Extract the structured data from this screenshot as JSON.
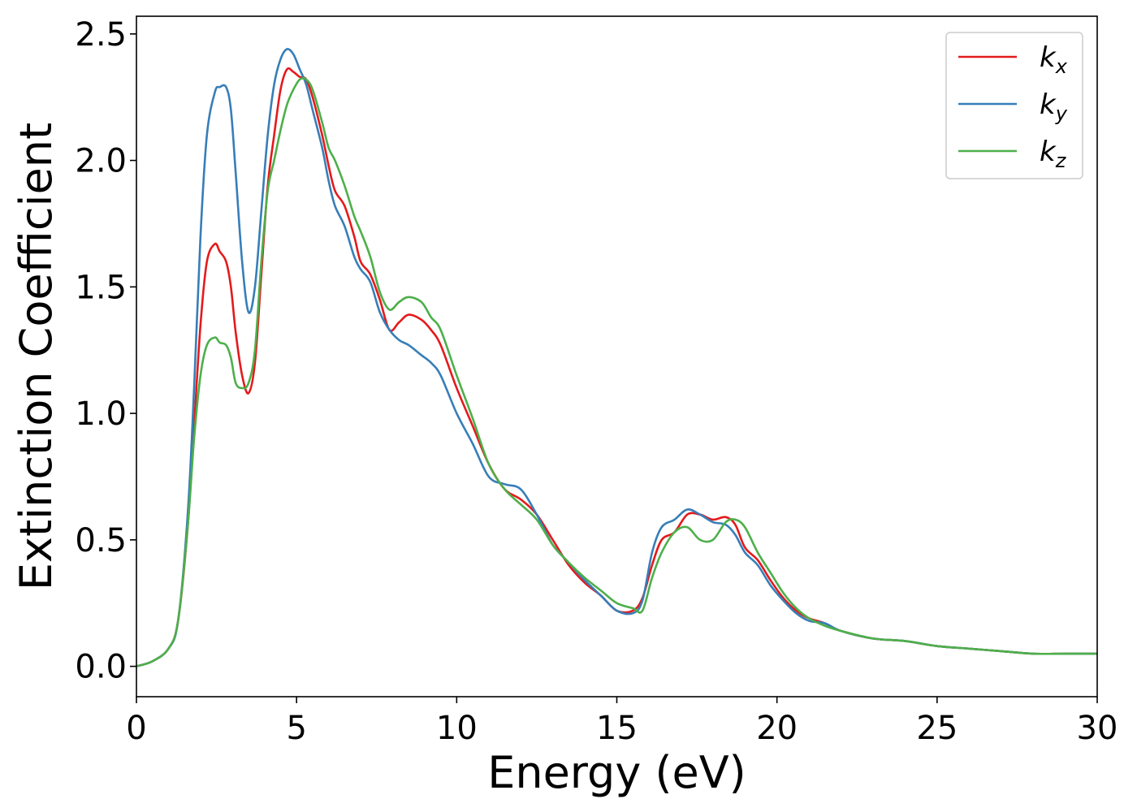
{
  "chart_data": {
    "type": "line",
    "title": "",
    "xlabel": "Energy (eV)",
    "ylabel": "Extinction Coefficient",
    "xlim": [
      0,
      30
    ],
    "ylim": [
      -0.12,
      2.57
    ],
    "xticks": [
      0,
      5,
      10,
      15,
      20,
      25,
      30
    ],
    "xtick_labels": [
      "0",
      "5",
      "10",
      "15",
      "20",
      "25",
      "30"
    ],
    "yticks": [
      0.0,
      0.5,
      1.0,
      1.5,
      2.0,
      2.5
    ],
    "ytick_labels": [
      "0.0",
      "0.5",
      "1.0",
      "1.5",
      "2.0",
      "2.5"
    ],
    "grid": false,
    "legend_position": "top-right",
    "series": [
      {
        "name": "k",
        "subscript": "x",
        "color": "#e41a1c",
        "x": [
          0,
          0.5,
          1.0,
          1.3,
          1.6,
          1.8,
          2.0,
          2.2,
          2.45,
          2.6,
          2.8,
          2.95,
          3.1,
          3.3,
          3.5,
          3.7,
          3.9,
          4.1,
          4.3,
          4.5,
          4.7,
          4.9,
          5.1,
          5.3,
          5.5,
          5.8,
          6.0,
          6.2,
          6.5,
          6.8,
          7.0,
          7.3,
          7.6,
          7.9,
          8.2,
          8.5,
          8.9,
          9.2,
          9.5,
          10.0,
          10.5,
          11.0,
          11.5,
          12.0,
          12.5,
          13.0,
          13.5,
          14.0,
          14.5,
          15.0,
          15.5,
          15.8,
          16.1,
          16.4,
          16.8,
          17.2,
          17.6,
          18.0,
          18.4,
          18.7,
          19.0,
          19.4,
          19.8,
          20.2,
          20.6,
          21.0,
          21.5,
          22.0,
          23.0,
          24.0,
          25.0,
          26.0,
          27.0,
          28.0,
          29.0,
          30.0
        ],
        "values": [
          0.0,
          0.02,
          0.07,
          0.18,
          0.55,
          0.95,
          1.35,
          1.6,
          1.67,
          1.64,
          1.6,
          1.5,
          1.32,
          1.15,
          1.08,
          1.2,
          1.55,
          1.9,
          2.1,
          2.28,
          2.36,
          2.35,
          2.33,
          2.32,
          2.25,
          2.1,
          1.98,
          1.88,
          1.82,
          1.7,
          1.6,
          1.55,
          1.45,
          1.33,
          1.36,
          1.39,
          1.37,
          1.33,
          1.27,
          1.1,
          0.95,
          0.8,
          0.7,
          0.66,
          0.6,
          0.5,
          0.4,
          0.33,
          0.28,
          0.22,
          0.22,
          0.27,
          0.4,
          0.5,
          0.53,
          0.6,
          0.6,
          0.58,
          0.59,
          0.56,
          0.47,
          0.42,
          0.34,
          0.27,
          0.22,
          0.19,
          0.17,
          0.14,
          0.11,
          0.1,
          0.08,
          0.07,
          0.06,
          0.05,
          0.05,
          0.05
        ]
      },
      {
        "name": "k",
        "subscript": "y",
        "color": "#377eb8",
        "x": [
          0,
          0.5,
          1.0,
          1.3,
          1.6,
          1.8,
          2.0,
          2.2,
          2.45,
          2.6,
          2.8,
          2.95,
          3.1,
          3.3,
          3.5,
          3.7,
          3.9,
          4.1,
          4.3,
          4.5,
          4.7,
          4.9,
          5.1,
          5.3,
          5.5,
          5.8,
          6.0,
          6.2,
          6.5,
          6.8,
          7.0,
          7.3,
          7.6,
          7.9,
          8.2,
          8.5,
          8.9,
          9.2,
          9.5,
          10.0,
          10.5,
          11.0,
          11.5,
          12.0,
          12.5,
          13.0,
          13.5,
          14.0,
          14.5,
          15.0,
          15.5,
          15.8,
          16.1,
          16.4,
          16.8,
          17.2,
          17.6,
          18.0,
          18.4,
          18.7,
          19.0,
          19.4,
          19.8,
          20.2,
          20.6,
          21.0,
          21.5,
          22.0,
          23.0,
          24.0,
          25.0,
          26.0,
          27.0,
          28.0,
          29.0,
          30.0
        ],
        "values": [
          0.0,
          0.02,
          0.07,
          0.18,
          0.6,
          1.1,
          1.7,
          2.1,
          2.27,
          2.29,
          2.29,
          2.2,
          1.95,
          1.6,
          1.4,
          1.5,
          1.8,
          2.1,
          2.3,
          2.4,
          2.44,
          2.42,
          2.36,
          2.3,
          2.2,
          2.05,
          1.92,
          1.82,
          1.74,
          1.62,
          1.57,
          1.52,
          1.4,
          1.33,
          1.29,
          1.27,
          1.23,
          1.2,
          1.15,
          1.0,
          0.88,
          0.75,
          0.72,
          0.7,
          0.6,
          0.48,
          0.41,
          0.34,
          0.28,
          0.22,
          0.21,
          0.26,
          0.45,
          0.55,
          0.58,
          0.62,
          0.6,
          0.57,
          0.56,
          0.52,
          0.45,
          0.4,
          0.32,
          0.26,
          0.21,
          0.18,
          0.17,
          0.14,
          0.11,
          0.1,
          0.08,
          0.07,
          0.06,
          0.05,
          0.05,
          0.05
        ]
      },
      {
        "name": "k",
        "subscript": "z",
        "color": "#4daf4a",
        "x": [
          0,
          0.5,
          1.0,
          1.3,
          1.6,
          1.8,
          2.0,
          2.2,
          2.45,
          2.6,
          2.8,
          2.95,
          3.1,
          3.3,
          3.5,
          3.7,
          3.9,
          4.1,
          4.3,
          4.5,
          4.7,
          4.9,
          5.1,
          5.3,
          5.5,
          5.8,
          6.0,
          6.2,
          6.5,
          6.8,
          7.0,
          7.3,
          7.6,
          7.9,
          8.2,
          8.5,
          8.9,
          9.2,
          9.5,
          10.0,
          10.5,
          11.0,
          11.5,
          12.0,
          12.5,
          13.0,
          13.5,
          14.0,
          14.5,
          15.0,
          15.5,
          15.8,
          16.1,
          16.4,
          16.8,
          17.2,
          17.6,
          18.0,
          18.4,
          18.7,
          19.0,
          19.4,
          19.8,
          20.2,
          20.6,
          21.0,
          21.5,
          22.0,
          23.0,
          24.0,
          25.0,
          26.0,
          27.0,
          28.0,
          29.0,
          30.0
        ],
        "values": [
          0.0,
          0.02,
          0.07,
          0.18,
          0.55,
          0.9,
          1.15,
          1.27,
          1.3,
          1.28,
          1.27,
          1.22,
          1.12,
          1.1,
          1.12,
          1.25,
          1.6,
          1.88,
          2.0,
          2.12,
          2.22,
          2.28,
          2.32,
          2.32,
          2.28,
          2.15,
          2.05,
          2.0,
          1.9,
          1.78,
          1.72,
          1.62,
          1.48,
          1.41,
          1.44,
          1.46,
          1.44,
          1.38,
          1.33,
          1.15,
          0.98,
          0.8,
          0.7,
          0.64,
          0.58,
          0.48,
          0.41,
          0.35,
          0.3,
          0.25,
          0.23,
          0.22,
          0.35,
          0.45,
          0.53,
          0.55,
          0.5,
          0.5,
          0.57,
          0.58,
          0.55,
          0.45,
          0.37,
          0.29,
          0.23,
          0.19,
          0.16,
          0.14,
          0.11,
          0.1,
          0.08,
          0.07,
          0.06,
          0.05,
          0.05,
          0.05
        ]
      }
    ]
  }
}
